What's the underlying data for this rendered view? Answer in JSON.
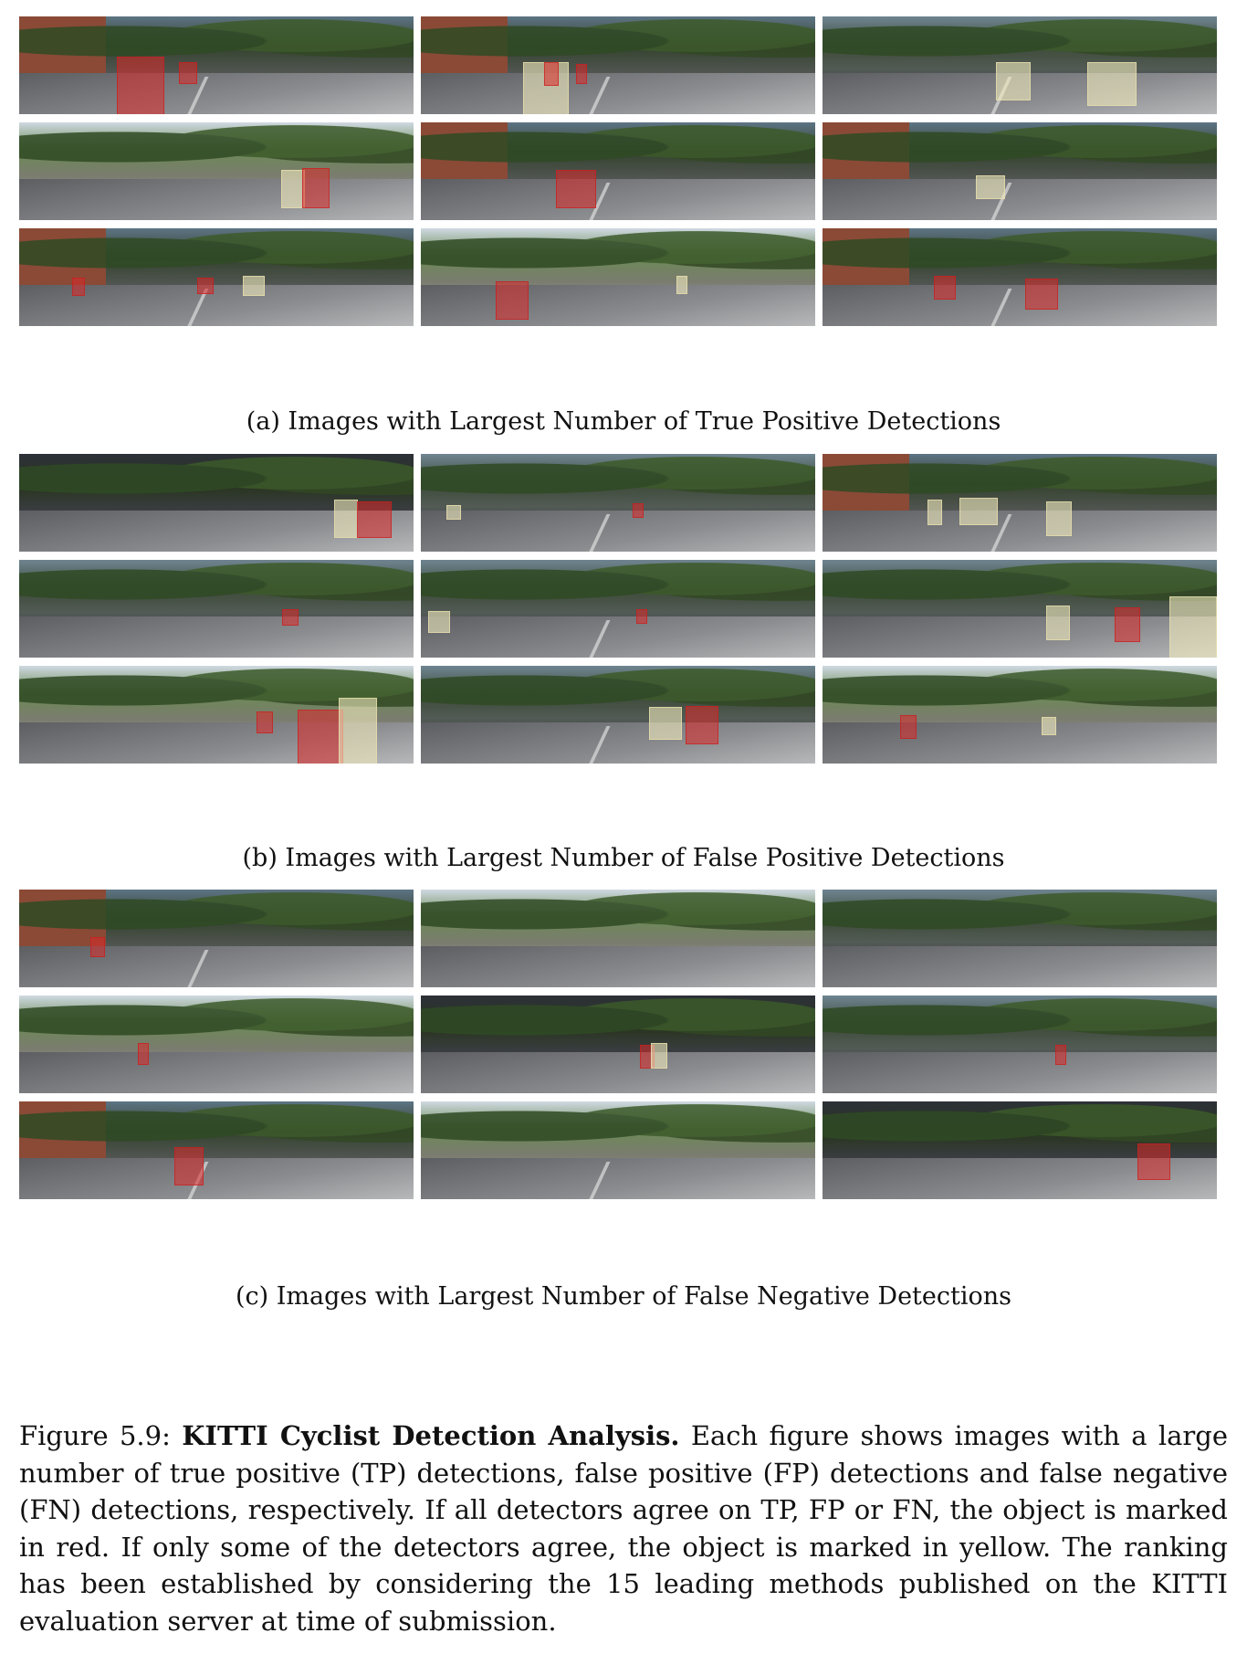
{
  "panel_a": {
    "caption": "(a) Images with Largest Number of True Positive Detections"
  },
  "panel_b": {
    "caption": "(b) Images with Largest Number of False Positive Detections"
  },
  "panel_c": {
    "caption": "(c) Images with Largest Number of False Negative Detections"
  },
  "figure": {
    "label": "Figure 5.9: ",
    "title": "KITTI Cyclist Detection Analysis.",
    "text": " Each figure shows images with a large number of true positive (TP) detections, false positive (FP) detections and false negative (FN) detections, respectively. If all detectors agree on TP, FP or FN, the object is marked in red. If only some of the detectors agree, the object is marked in yellow. The ranking has been established by considering the 15 leading methods published on the KITTI evaluation server at time of submission."
  },
  "colors": {
    "all_agree": "#dc2828",
    "some_agree": "#f0ebbe"
  }
}
